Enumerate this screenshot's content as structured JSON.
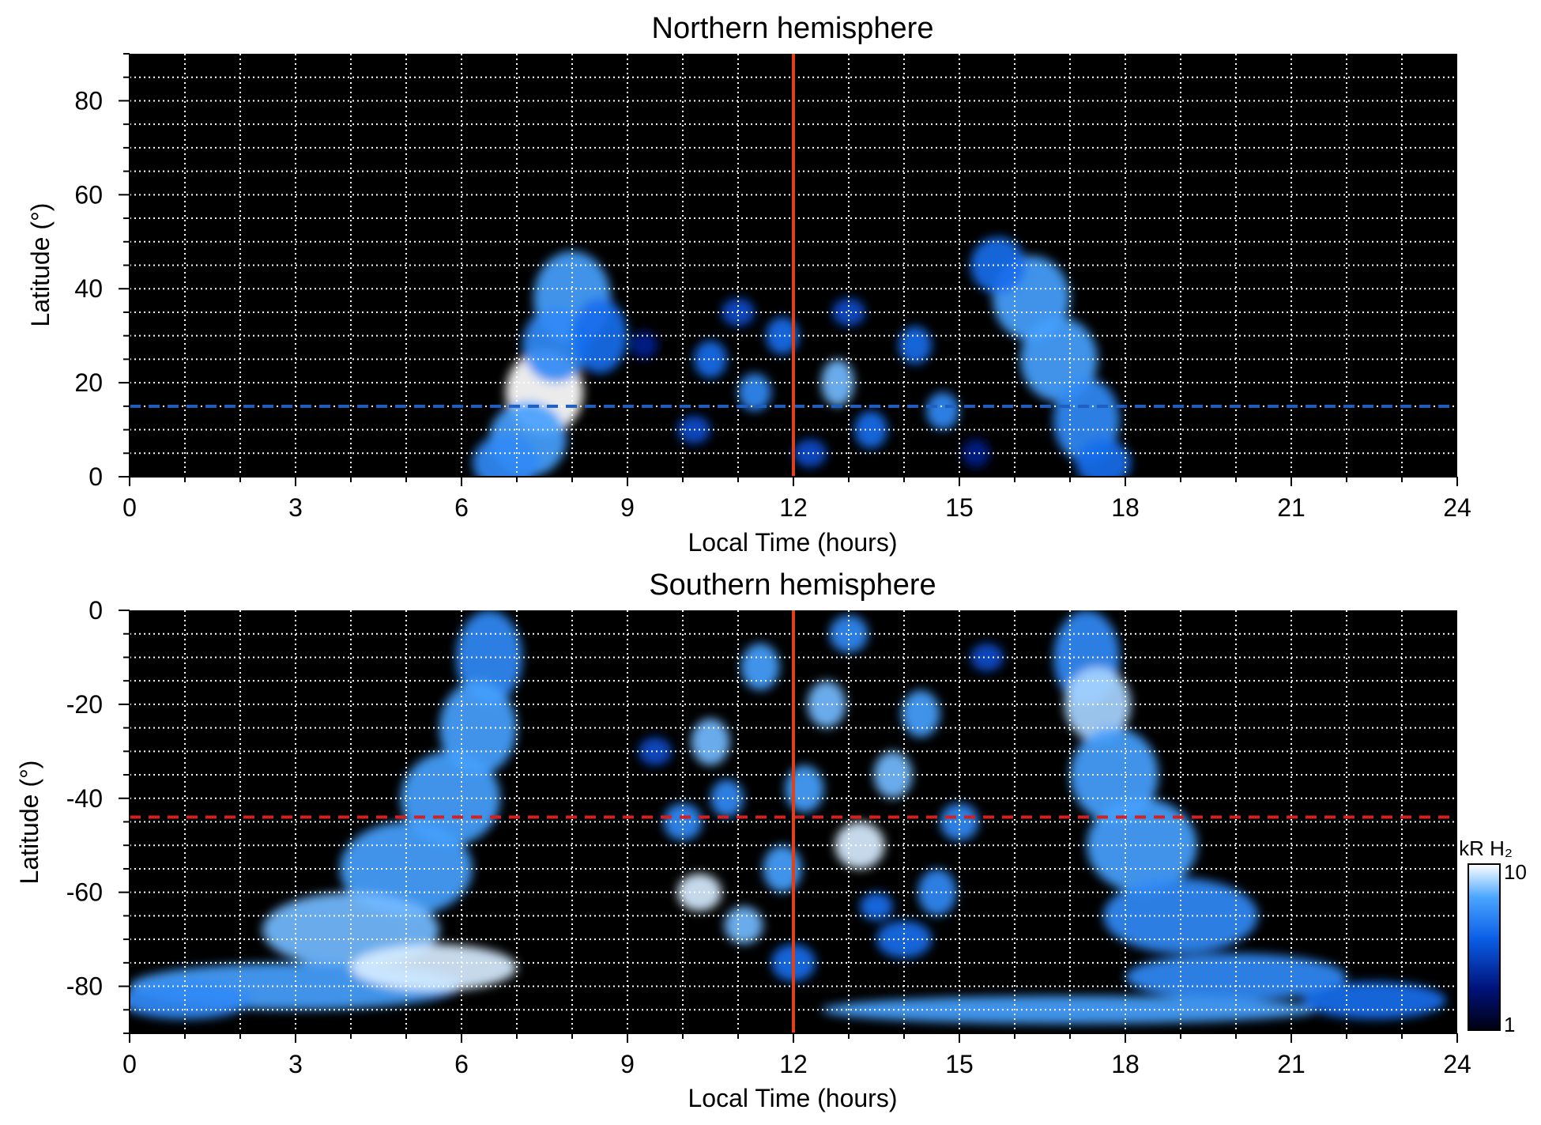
{
  "chart_data": [
    {
      "type": "heatmap",
      "title": "Northern hemisphere",
      "xlabel": "Local Time (hours)",
      "ylabel": "Latitude (°)",
      "xlim": [
        0,
        24
      ],
      "ylim": [
        0,
        90
      ],
      "xticks": [
        "0",
        "3",
        "6",
        "9",
        "12",
        "15",
        "18",
        "21",
        "24"
      ],
      "yticks": [
        "0",
        "20",
        "40",
        "60",
        "80"
      ],
      "ytick_values": [
        0,
        20,
        40,
        60,
        80
      ],
      "grid": true,
      "vline_local_time": 12,
      "hline_latitude": 15,
      "hline_color": "#1f5fbf",
      "vline_color": "#e0401a",
      "blobs": [
        {
          "lt": 7.5,
          "lat": 18,
          "w": 0.7,
          "h": 9,
          "v": 10
        },
        {
          "lt": 7.2,
          "lat": 8,
          "w": 0.7,
          "h": 8,
          "v": 6
        },
        {
          "lt": 8.0,
          "lat": 38,
          "w": 0.7,
          "h": 10,
          "v": 6
        },
        {
          "lt": 7.7,
          "lat": 28,
          "w": 0.6,
          "h": 8,
          "v": 5
        },
        {
          "lt": 6.8,
          "lat": 3,
          "w": 0.6,
          "h": 6,
          "v": 5
        },
        {
          "lt": 8.5,
          "lat": 30,
          "w": 0.5,
          "h": 8,
          "v": 4
        },
        {
          "lt": 16.3,
          "lat": 38,
          "w": 0.7,
          "h": 9,
          "v": 6
        },
        {
          "lt": 16.8,
          "lat": 25,
          "w": 0.7,
          "h": 9,
          "v": 6
        },
        {
          "lt": 17.3,
          "lat": 12,
          "w": 0.6,
          "h": 9,
          "v": 5
        },
        {
          "lt": 15.7,
          "lat": 45,
          "w": 0.5,
          "h": 6,
          "v": 4
        },
        {
          "lt": 17.6,
          "lat": 3,
          "w": 0.5,
          "h": 5,
          "v": 4
        },
        {
          "lt": 10.5,
          "lat": 25,
          "w": 0.3,
          "h": 4,
          "v": 4
        },
        {
          "lt": 11.3,
          "lat": 18,
          "w": 0.3,
          "h": 4,
          "v": 5
        },
        {
          "lt": 11.8,
          "lat": 30,
          "w": 0.3,
          "h": 4,
          "v": 4
        },
        {
          "lt": 12.8,
          "lat": 20,
          "w": 0.3,
          "h": 5,
          "v": 7
        },
        {
          "lt": 13.4,
          "lat": 10,
          "w": 0.3,
          "h": 4,
          "v": 4
        },
        {
          "lt": 14.2,
          "lat": 28,
          "w": 0.3,
          "h": 4,
          "v": 4
        },
        {
          "lt": 14.7,
          "lat": 14,
          "w": 0.3,
          "h": 4,
          "v": 5
        },
        {
          "lt": 10.2,
          "lat": 10,
          "w": 0.3,
          "h": 3,
          "v": 3
        },
        {
          "lt": 12.3,
          "lat": 5,
          "w": 0.3,
          "h": 3,
          "v": 3
        },
        {
          "lt": 13.0,
          "lat": 35,
          "w": 0.3,
          "h": 3,
          "v": 3
        },
        {
          "lt": 11.0,
          "lat": 35,
          "w": 0.3,
          "h": 3,
          "v": 3
        },
        {
          "lt": 9.3,
          "lat": 28,
          "w": 0.25,
          "h": 3,
          "v": 2
        },
        {
          "lt": 15.3,
          "lat": 5,
          "w": 0.25,
          "h": 3,
          "v": 2
        }
      ]
    },
    {
      "type": "heatmap",
      "title": "Southern hemisphere",
      "xlabel": "Local Time (hours)",
      "ylabel": "Latitude (°)",
      "xlim": [
        0,
        24
      ],
      "ylim": [
        -90,
        0
      ],
      "xticks": [
        "0",
        "3",
        "6",
        "9",
        "12",
        "15",
        "18",
        "21",
        "24"
      ],
      "yticks": [
        "0",
        "-20",
        "-40",
        "-60",
        "-80"
      ],
      "ytick_values": [
        0,
        -20,
        -40,
        -60,
        -80
      ],
      "grid": true,
      "vline_local_time": 12,
      "hline_latitude": -44,
      "hline_color": "#d42020",
      "vline_color": "#e0401a",
      "colorbar": {
        "label": "kR H₂",
        "min": "1",
        "max": "10",
        "scale": "log"
      },
      "blobs": [
        {
          "lt": 6.5,
          "lat": -10,
          "w": 0.6,
          "h": 10,
          "v": 5
        },
        {
          "lt": 6.3,
          "lat": -25,
          "w": 0.7,
          "h": 10,
          "v": 6
        },
        {
          "lt": 5.8,
          "lat": -40,
          "w": 0.9,
          "h": 10,
          "v": 6
        },
        {
          "lt": 5.0,
          "lat": -55,
          "w": 1.2,
          "h": 10,
          "v": 6
        },
        {
          "lt": 4.0,
          "lat": -68,
          "w": 1.6,
          "h": 8,
          "v": 7
        },
        {
          "lt": 3.0,
          "lat": -80,
          "w": 3.0,
          "h": 5,
          "v": 6
        },
        {
          "lt": 5.5,
          "lat": -76,
          "w": 1.5,
          "h": 5,
          "v": 9
        },
        {
          "lt": 1.0,
          "lat": -83,
          "w": 1.2,
          "h": 4,
          "v": 5
        },
        {
          "lt": 17.3,
          "lat": -10,
          "w": 0.6,
          "h": 10,
          "v": 5
        },
        {
          "lt": 17.5,
          "lat": -20,
          "w": 0.6,
          "h": 8,
          "v": 8
        },
        {
          "lt": 17.8,
          "lat": -35,
          "w": 0.8,
          "h": 10,
          "v": 6
        },
        {
          "lt": 18.3,
          "lat": -50,
          "w": 1.0,
          "h": 10,
          "v": 6
        },
        {
          "lt": 19.0,
          "lat": -65,
          "w": 1.4,
          "h": 8,
          "v": 5
        },
        {
          "lt": 20.0,
          "lat": -78,
          "w": 2.0,
          "h": 5,
          "v": 5
        },
        {
          "lt": 17.0,
          "lat": -85,
          "w": 4.5,
          "h": 3,
          "v": 6
        },
        {
          "lt": 22.5,
          "lat": -83,
          "w": 1.3,
          "h": 4,
          "v": 4
        },
        {
          "lt": 10.5,
          "lat": -28,
          "w": 0.35,
          "h": 5,
          "v": 7
        },
        {
          "lt": 11.4,
          "lat": -12,
          "w": 0.35,
          "h": 5,
          "v": 6
        },
        {
          "lt": 12.6,
          "lat": -20,
          "w": 0.35,
          "h": 5,
          "v": 7
        },
        {
          "lt": 13.2,
          "lat": -50,
          "w": 0.45,
          "h": 5,
          "v": 9
        },
        {
          "lt": 10.3,
          "lat": -60,
          "w": 0.4,
          "h": 4,
          "v": 9
        },
        {
          "lt": 11.1,
          "lat": -67,
          "w": 0.35,
          "h": 4,
          "v": 7
        },
        {
          "lt": 13.8,
          "lat": -35,
          "w": 0.35,
          "h": 5,
          "v": 7
        },
        {
          "lt": 14.3,
          "lat": -22,
          "w": 0.35,
          "h": 5,
          "v": 6
        },
        {
          "lt": 12.2,
          "lat": -38,
          "w": 0.35,
          "h": 5,
          "v": 6
        },
        {
          "lt": 11.8,
          "lat": -55,
          "w": 0.35,
          "h": 5,
          "v": 6
        },
        {
          "lt": 14.6,
          "lat": -60,
          "w": 0.35,
          "h": 5,
          "v": 5
        },
        {
          "lt": 13.0,
          "lat": -5,
          "w": 0.35,
          "h": 4,
          "v": 5
        },
        {
          "lt": 10.0,
          "lat": -45,
          "w": 0.35,
          "h": 4,
          "v": 5
        },
        {
          "lt": 15.0,
          "lat": -45,
          "w": 0.35,
          "h": 4,
          "v": 5
        },
        {
          "lt": 9.5,
          "lat": -30,
          "w": 0.3,
          "h": 3,
          "v": 3
        },
        {
          "lt": 15.5,
          "lat": -10,
          "w": 0.3,
          "h": 3,
          "v": 3
        },
        {
          "lt": 12.0,
          "lat": -75,
          "w": 0.4,
          "h": 4,
          "v": 4
        },
        {
          "lt": 14.0,
          "lat": -70,
          "w": 0.5,
          "h": 4,
          "v": 4
        },
        {
          "lt": 10.8,
          "lat": -40,
          "w": 0.3,
          "h": 4,
          "v": 5
        },
        {
          "lt": 13.5,
          "lat": -63,
          "w": 0.3,
          "h": 3,
          "v": 4
        }
      ]
    }
  ]
}
